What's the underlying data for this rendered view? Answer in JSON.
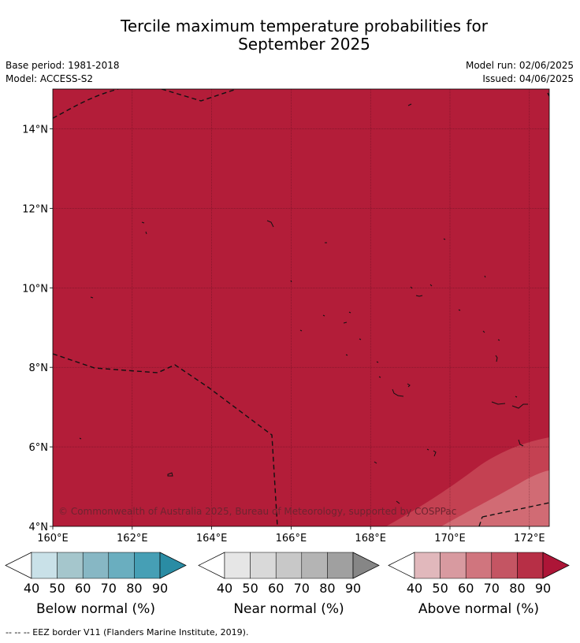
{
  "title_line1": "Tercile maximum temperature probabilities for",
  "title_line2": "September 2025",
  "base_period": "Base period: 1981-2018",
  "model": "Model: ACCESS-S2",
  "model_run": "Model run: 02/06/2025",
  "issued": "Issued: 04/06/2025",
  "copyright": "© Commonwealth of Australia 2025, Bureau of Meteorology, supported by COSPPac",
  "footer_note": "--  --  -- EEZ border V11 (Flanders Marine Institute, 2019).",
  "map": {
    "lon_range": [
      160,
      172.5
    ],
    "lat_range": [
      4,
      15
    ],
    "x_ticks": [
      "160°E",
      "162°E",
      "164°E",
      "166°E",
      "168°E",
      "170°E",
      "172°E"
    ],
    "y_ticks": [
      "4°N",
      "6°N",
      "8°N",
      "10°N",
      "12°N",
      "14°N"
    ],
    "dominant_category": "Above normal",
    "dominant_probability_bin": "80-90",
    "colors": {
      "fill_80_90": "#b31d39",
      "fill_70_80": "#c44152",
      "fill_60_70": "#d16b74"
    }
  },
  "legend": {
    "below": {
      "title": "Below normal (%)",
      "ticks": [
        "40",
        "50",
        "60",
        "70",
        "80",
        "90"
      ],
      "colors": [
        "#ffffff",
        "#c9e1e8",
        "#a5c6cc",
        "#87b7c4",
        "#6aaebf",
        "#469fb5",
        "#2a8ca4"
      ]
    },
    "near": {
      "title": "Near normal (%)",
      "ticks": [
        "40",
        "50",
        "60",
        "70",
        "80",
        "90"
      ],
      "colors": [
        "#ffffff",
        "#e6e6e6",
        "#d9d9d9",
        "#c8c8c8",
        "#b4b4b4",
        "#a0a0a0",
        "#868686"
      ]
    },
    "above": {
      "title": "Above normal (%)",
      "ticks": [
        "40",
        "50",
        "60",
        "70",
        "80",
        "90"
      ],
      "colors": [
        "#ffffff",
        "#e1b8bc",
        "#d89aa0",
        "#d0757e",
        "#c45563",
        "#b72f46",
        "#ad1537"
      ]
    }
  }
}
